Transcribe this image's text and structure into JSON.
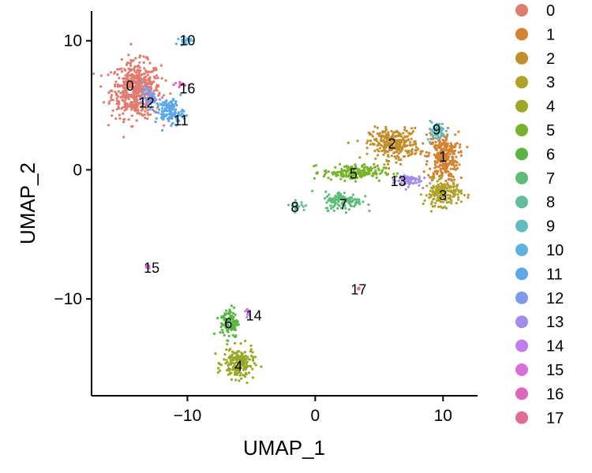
{
  "chart_data": {
    "type": "scatter",
    "title": "",
    "xlabel": "UMAP_1",
    "ylabel": "UMAP_2",
    "xlim": [
      -17.5,
      12.7
    ],
    "ylim": [
      -17.5,
      12.3
    ],
    "x_ticks": [
      -10,
      0,
      10
    ],
    "y_ticks": [
      -10,
      0,
      10
    ],
    "x_tick_labels": [
      "−10",
      "0",
      "10"
    ],
    "y_tick_labels": [
      "−10",
      "0",
      "10"
    ],
    "grid": false,
    "legend_position": "right",
    "series": [
      {
        "name": "0",
        "color": "#E07C6F",
        "center": [
          -14.0,
          6.2
        ],
        "spread": [
          1.6,
          1.8
        ],
        "label_at": [
          -14.5,
          6.5
        ]
      },
      {
        "name": "1",
        "color": "#D4822F",
        "center": [
          10.0,
          1.0
        ],
        "spread": [
          1.0,
          1.6
        ],
        "label_at": [
          10.0,
          1.0
        ]
      },
      {
        "name": "2",
        "color": "#C38E29",
        "center": [
          6.2,
          2.0
        ],
        "spread": [
          1.6,
          1.0
        ],
        "label_at": [
          6.0,
          2.0
        ]
      },
      {
        "name": "3",
        "color": "#B0A128",
        "center": [
          10.0,
          -1.8
        ],
        "spread": [
          1.2,
          0.8
        ],
        "label_at": [
          10.0,
          -2.0
        ]
      },
      {
        "name": "4",
        "color": "#9AA727",
        "center": [
          -6.0,
          -15.0
        ],
        "spread": [
          1.0,
          1.0
        ],
        "label_at": [
          -6.0,
          -15.2
        ]
      },
      {
        "name": "5",
        "color": "#79B32B",
        "center": [
          3.0,
          -0.2
        ],
        "spread": [
          2.0,
          0.5
        ],
        "label_at": [
          3.0,
          -0.3
        ]
      },
      {
        "name": "6",
        "color": "#5BB544",
        "center": [
          -6.7,
          -11.8
        ],
        "spread": [
          0.6,
          1.0
        ],
        "label_at": [
          -6.8,
          -11.9
        ]
      },
      {
        "name": "7",
        "color": "#5EBC79",
        "center": [
          2.2,
          -2.4
        ],
        "spread": [
          1.2,
          0.6
        ],
        "label_at": [
          2.2,
          -2.7
        ]
      },
      {
        "name": "8",
        "color": "#63BC9C",
        "center": [
          -1.4,
          -2.8
        ],
        "spread": [
          0.5,
          0.3
        ],
        "label_at": [
          -1.6,
          -2.9
        ]
      },
      {
        "name": "9",
        "color": "#64BAC1",
        "center": [
          9.5,
          3.0
        ],
        "spread": [
          0.6,
          0.6
        ],
        "label_at": [
          9.5,
          3.1
        ]
      },
      {
        "name": "10",
        "color": "#5DB3DE",
        "center": [
          -10.2,
          10.0
        ],
        "spread": [
          0.4,
          0.3
        ],
        "label_at": [
          -10.0,
          10.0
        ]
      },
      {
        "name": "11",
        "color": "#5CA6E9",
        "center": [
          -11.4,
          4.5
        ],
        "spread": [
          0.9,
          0.8
        ],
        "label_at": [
          -10.5,
          3.8
        ]
      },
      {
        "name": "12",
        "color": "#7F9AEC",
        "center": [
          -13.0,
          5.6
        ],
        "spread": [
          0.5,
          0.6
        ],
        "label_at": [
          -13.2,
          5.2
        ]
      },
      {
        "name": "13",
        "color": "#A38DE9",
        "center": [
          7.2,
          -0.8
        ],
        "spread": [
          0.9,
          0.4
        ],
        "label_at": [
          6.5,
          -0.9
        ]
      },
      {
        "name": "14",
        "color": "#C17DEC",
        "center": [
          -5.3,
          -11.0
        ],
        "spread": [
          0.2,
          0.3
        ],
        "label_at": [
          -4.8,
          -11.3
        ]
      },
      {
        "name": "15",
        "color": "#D970DA",
        "center": [
          -13.1,
          -7.5
        ],
        "spread": [
          0.15,
          0.15
        ],
        "label_at": [
          -12.8,
          -7.6
        ]
      },
      {
        "name": "16",
        "color": "#DE67BA",
        "center": [
          -10.4,
          6.6
        ],
        "spread": [
          0.5,
          0.15
        ],
        "label_at": [
          -10.0,
          6.3
        ]
      },
      {
        "name": "17",
        "color": "#E36A97",
        "center": [
          3.4,
          -9.2
        ],
        "spread": [
          0.08,
          0.08
        ],
        "label_at": [
          3.4,
          -9.3
        ]
      }
    ]
  }
}
